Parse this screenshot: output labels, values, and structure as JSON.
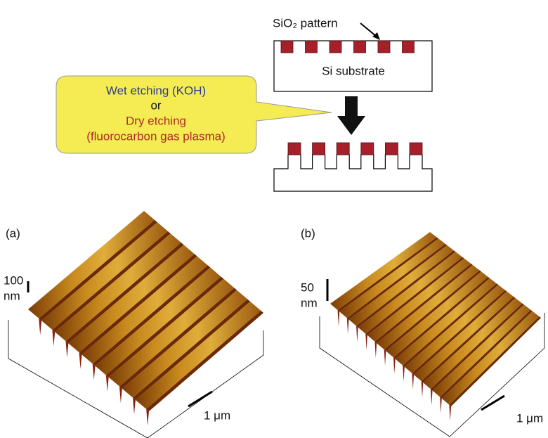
{
  "schematic": {
    "pattern_label": "SiO₂ pattern",
    "substrate_label": "Si substrate",
    "callout": {
      "wet": "Wet etching (KOH)",
      "or": "or",
      "dry": "Dry etching",
      "dry_detail": "(fluorocarbon gas plasma)"
    }
  },
  "panels": [
    {
      "label": "(a)",
      "height_scale": "100",
      "height_unit": "nm",
      "length_scale": "1 μm"
    },
    {
      "label": "(b)",
      "height_scale": "50",
      "height_unit": "nm",
      "length_scale": "1 μm"
    }
  ]
}
